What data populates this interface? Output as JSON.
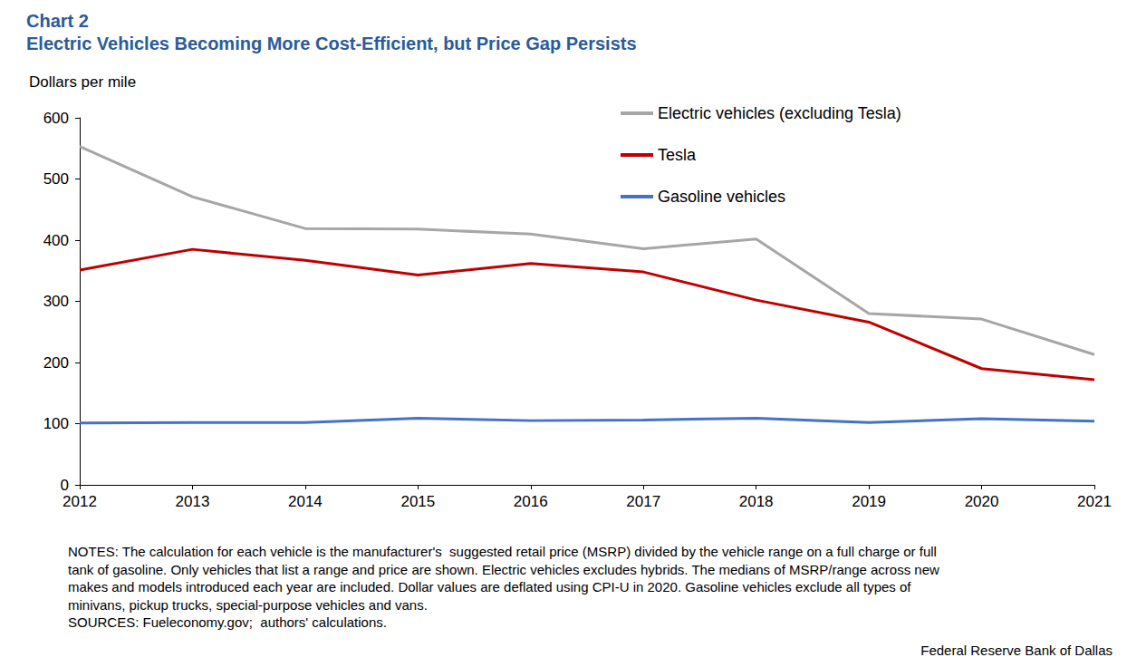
{
  "chart_data": {
    "type": "line",
    "title": "Chart 2",
    "subtitle": "Electric Vehicles Becoming More Cost-Efficient, but Price Gap Persists",
    "ylabel": "Dollars per mile",
    "categories": [
      "2012",
      "2013",
      "2014",
      "2015",
      "2016",
      "2017",
      "2018",
      "2019",
      "2020",
      "2021"
    ],
    "series": [
      {
        "name": "Electric vehicles (excluding Tesla)",
        "color": "#a6a6a6",
        "marker": "none",
        "line_style": "solid",
        "values": [
          553,
          471,
          419,
          418,
          410,
          386,
          402,
          280,
          271,
          213
        ]
      },
      {
        "name": "Tesla",
        "color": "#c00000",
        "marker": "none",
        "line_style": "solid",
        "values": [
          351,
          385,
          367,
          343,
          362,
          348,
          302,
          266,
          190,
          172
        ]
      },
      {
        "name": "Gasoline vehicles",
        "color": "#4472c4",
        "marker": "none",
        "line_style": "solid",
        "values": [
          101,
          102,
          102,
          109,
          105,
          106,
          109,
          102,
          108,
          104
        ]
      }
    ],
    "ylim": [
      0,
      600
    ],
    "yticks": [
      0,
      100,
      200,
      300,
      400,
      500,
      600
    ],
    "grid": false,
    "legend": "upper right",
    "notes": [
      "NOTES: The calculation for each vehicle is the manufacturer's  suggested retail price (MSRP) divided by the vehicle range on a full charge or full",
      "tank of gasoline. Only vehicles that list a range and price are shown. Electric vehicles excludes hybrids. The medians of MSRP/range across new",
      "makes and models introduced each year are included. Dollar values are deflated using CPI-U in 2020. Gasoline vehicles exclude all types of",
      "minivans, pickup trucks, special-purpose vehicles and vans."
    ],
    "source": "SOURCES: Fueleconomy.gov;  authors' calculations.",
    "credit": "Federal Reserve Bank of Dallas"
  }
}
